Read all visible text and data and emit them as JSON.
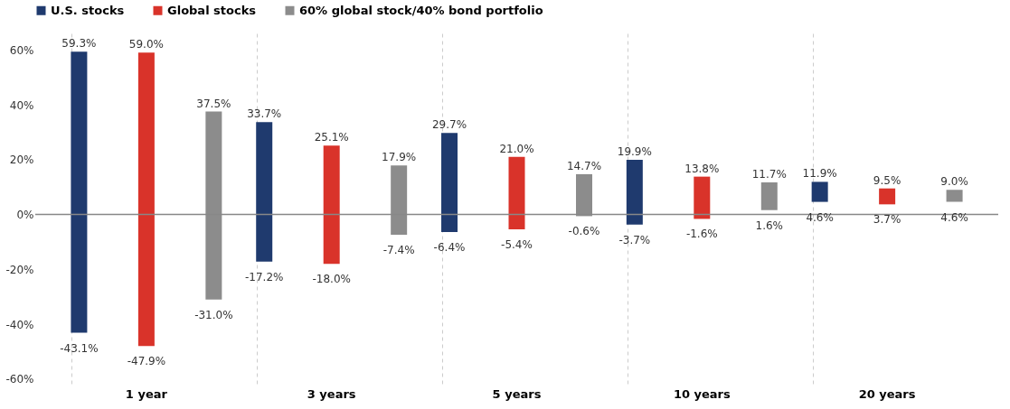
{
  "chart_data": {
    "type": "bar",
    "categories": [
      "1 year",
      "3 years",
      "5 years",
      "10 years",
      "20 years"
    ],
    "series": [
      {
        "name": "U.S. stocks",
        "color": "#1f3a6e",
        "values": [
          102.4,
          50.9,
          36.1,
          23.6,
          7.3
        ],
        "base": [
          -43.1,
          -17.2,
          -6.4,
          -3.7,
          4.6
        ],
        "value_labels": [
          [
            "59.3%",
            "-43.1%"
          ],
          [
            "33.7%",
            "-17.2%"
          ],
          [
            "29.7%",
            "-6.4%"
          ],
          [
            "19.9%",
            "-3.7%"
          ],
          [
            "11.9%",
            "4.6%"
          ]
        ]
      },
      {
        "name": "Global stocks",
        "color": "#d9332a",
        "values": [
          106.9,
          43.1,
          26.4,
          15.4,
          5.8
        ],
        "base": [
          -47.9,
          -18.0,
          -5.4,
          -1.6,
          3.7
        ],
        "value_labels": [
          [
            "59.0%",
            "-47.9%"
          ],
          [
            "25.1%",
            "-18.0%"
          ],
          [
            "21.0%",
            "-5.4%"
          ],
          [
            "13.8%",
            "-1.6%"
          ],
          [
            "9.5%",
            "3.7%"
          ]
        ]
      },
      {
        "name": "60% global stock/40% bond portfolio",
        "color": "#8c8c8c",
        "values": [
          68.5,
          25.3,
          15.3,
          10.1,
          4.4
        ],
        "base": [
          -31.0,
          -7.4,
          -0.6,
          1.6,
          4.6
        ],
        "value_labels": [
          [
            "37.5%",
            "-31.0%"
          ],
          [
            "17.9%",
            "-7.4%"
          ],
          [
            "14.7%",
            "-0.6%"
          ],
          [
            "11.7%",
            "1.6%"
          ],
          [
            "9.0%",
            "4.6%"
          ]
        ]
      }
    ],
    "ylim": [
      -62,
      66
    ],
    "yticks": [
      {
        "value": -60,
        "label": "-60%"
      },
      {
        "value": -40,
        "label": "-40%"
      },
      {
        "value": -20,
        "label": "-20%"
      },
      {
        "value": 0,
        "label": "0%"
      },
      {
        "value": 20,
        "label": "20%"
      },
      {
        "value": 40,
        "label": "40%"
      },
      {
        "value": 60,
        "label": "60%"
      }
    ],
    "ref_lines": [
      {
        "axis": "y",
        "value": 0,
        "color": "#888888"
      }
    ],
    "grid": "x",
    "legend": "top"
  }
}
